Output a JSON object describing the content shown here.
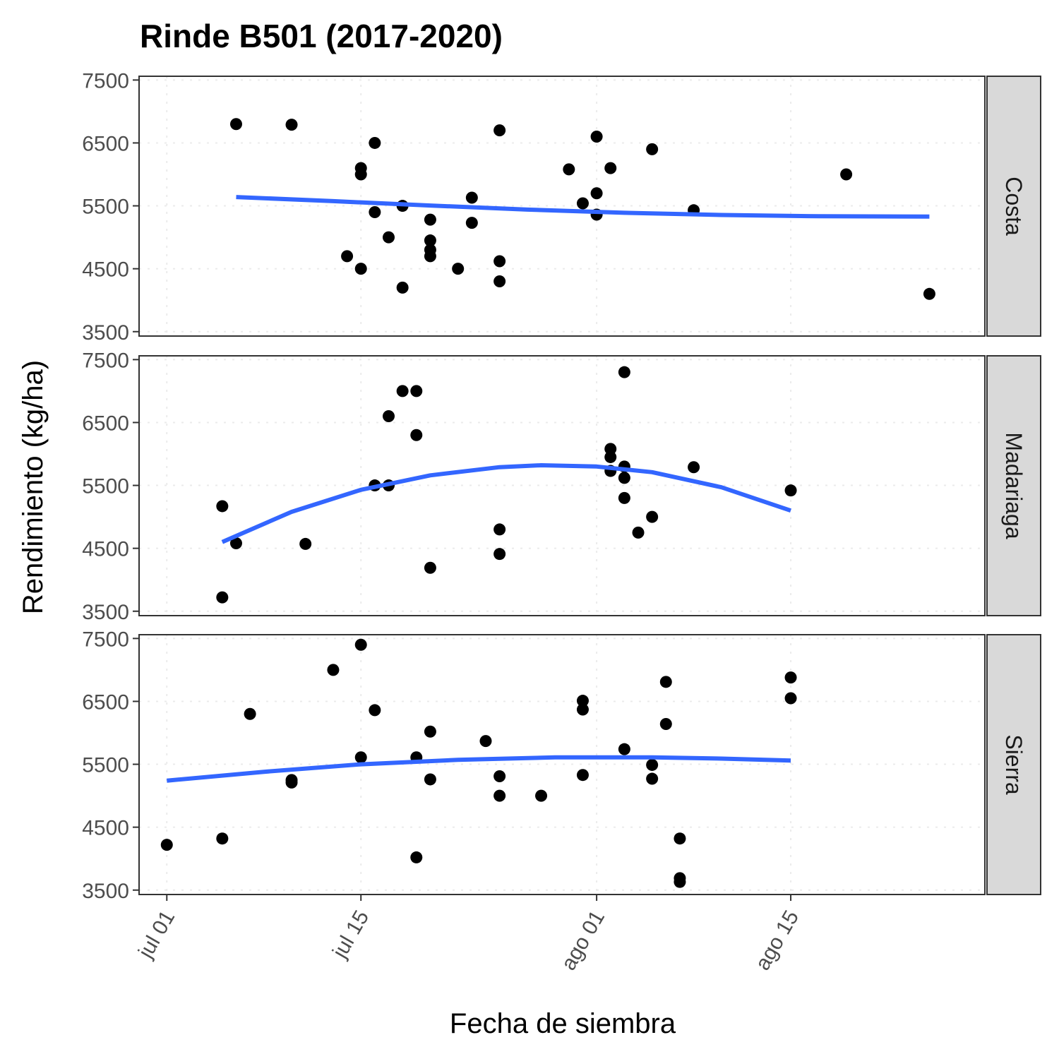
{
  "chart_data": {
    "type": "scatter",
    "title": "Rinde B501 (2017-2020)",
    "xlabel": "Fecha de siembra",
    "ylabel": "Rendimiento (kg/ha)",
    "x_unit": "day of year (jul 01 = 1)",
    "xlim": [
      "2018-06-28",
      "2018-08-28"
    ],
    "ylim": [
      3500,
      7500
    ],
    "x_ticks": [
      {
        "date": "2018-07-01",
        "label": "jul 01"
      },
      {
        "date": "2018-07-15",
        "label": "jul 15"
      },
      {
        "date": "2018-08-01",
        "label": "ago 01"
      },
      {
        "date": "2018-08-15",
        "label": "ago 15"
      }
    ],
    "y_ticks": [
      3500,
      4500,
      5500,
      6500,
      7500
    ],
    "grid": true,
    "colors": {
      "points": "#000000",
      "smooth": "#3366ff",
      "strip": "#d9d9d9",
      "grid": "#ebebeb",
      "border": "#333333"
    },
    "panels": [
      {
        "name": "Costa",
        "points": [
          {
            "x": "2018-07-06",
            "y": 6800
          },
          {
            "x": "2018-07-10",
            "y": 6790
          },
          {
            "x": "2018-07-14",
            "y": 4700
          },
          {
            "x": "2018-07-15",
            "y": 6100
          },
          {
            "x": "2018-07-15",
            "y": 6000
          },
          {
            "x": "2018-07-15",
            "y": 4500
          },
          {
            "x": "2018-07-16",
            "y": 6500
          },
          {
            "x": "2018-07-16",
            "y": 5400
          },
          {
            "x": "2018-07-17",
            "y": 5000
          },
          {
            "x": "2018-07-18",
            "y": 5500
          },
          {
            "x": "2018-07-18",
            "y": 4200
          },
          {
            "x": "2018-07-20",
            "y": 5280
          },
          {
            "x": "2018-07-20",
            "y": 4950
          },
          {
            "x": "2018-07-20",
            "y": 4800
          },
          {
            "x": "2018-07-20",
            "y": 4700
          },
          {
            "x": "2018-07-22",
            "y": 4500
          },
          {
            "x": "2018-07-23",
            "y": 5630
          },
          {
            "x": "2018-07-23",
            "y": 5230
          },
          {
            "x": "2018-07-25",
            "y": 6700
          },
          {
            "x": "2018-07-25",
            "y": 4620
          },
          {
            "x": "2018-07-25",
            "y": 4300
          },
          {
            "x": "2018-07-30",
            "y": 6080
          },
          {
            "x": "2018-07-31",
            "y": 5540
          },
          {
            "x": "2018-08-01",
            "y": 6600
          },
          {
            "x": "2018-08-01",
            "y": 5700
          },
          {
            "x": "2018-08-01",
            "y": 5360
          },
          {
            "x": "2018-08-02",
            "y": 6100
          },
          {
            "x": "2018-08-05",
            "y": 6400
          },
          {
            "x": "2018-08-08",
            "y": 5430
          },
          {
            "x": "2018-08-19",
            "y": 6000
          },
          {
            "x": "2018-08-25",
            "y": 4100
          }
        ],
        "smooth": [
          {
            "x": "2018-07-06",
            "y": 5640
          },
          {
            "x": "2018-07-13",
            "y": 5575
          },
          {
            "x": "2018-07-20",
            "y": 5505
          },
          {
            "x": "2018-07-27",
            "y": 5440
          },
          {
            "x": "2018-08-03",
            "y": 5390
          },
          {
            "x": "2018-08-10",
            "y": 5355
          },
          {
            "x": "2018-08-17",
            "y": 5335
          },
          {
            "x": "2018-08-25",
            "y": 5330
          }
        ]
      },
      {
        "name": "Madariaga",
        "points": [
          {
            "x": "2018-07-05",
            "y": 5170
          },
          {
            "x": "2018-07-05",
            "y": 3720
          },
          {
            "x": "2018-07-06",
            "y": 4580
          },
          {
            "x": "2018-07-11",
            "y": 4570
          },
          {
            "x": "2018-07-16",
            "y": 5500
          },
          {
            "x": "2018-07-17",
            "y": 6600
          },
          {
            "x": "2018-07-17",
            "y": 5500
          },
          {
            "x": "2018-07-18",
            "y": 7000
          },
          {
            "x": "2018-07-19",
            "y": 7000
          },
          {
            "x": "2018-07-19",
            "y": 6300
          },
          {
            "x": "2018-07-20",
            "y": 4190
          },
          {
            "x": "2018-07-25",
            "y": 4800
          },
          {
            "x": "2018-07-25",
            "y": 4410
          },
          {
            "x": "2018-08-02",
            "y": 6080
          },
          {
            "x": "2018-08-02",
            "y": 5950
          },
          {
            "x": "2018-08-02",
            "y": 5730
          },
          {
            "x": "2018-08-03",
            "y": 7300
          },
          {
            "x": "2018-08-03",
            "y": 5800
          },
          {
            "x": "2018-08-03",
            "y": 5620
          },
          {
            "x": "2018-08-03",
            "y": 5300
          },
          {
            "x": "2018-08-04",
            "y": 4750
          },
          {
            "x": "2018-08-05",
            "y": 5000
          },
          {
            "x": "2018-08-08",
            "y": 5790
          },
          {
            "x": "2018-08-15",
            "y": 5420
          }
        ],
        "smooth": [
          {
            "x": "2018-07-05",
            "y": 4600
          },
          {
            "x": "2018-07-10",
            "y": 5080
          },
          {
            "x": "2018-07-15",
            "y": 5430
          },
          {
            "x": "2018-07-20",
            "y": 5660
          },
          {
            "x": "2018-07-25",
            "y": 5790
          },
          {
            "x": "2018-07-28",
            "y": 5820
          },
          {
            "x": "2018-08-01",
            "y": 5800
          },
          {
            "x": "2018-08-05",
            "y": 5710
          },
          {
            "x": "2018-08-10",
            "y": 5470
          },
          {
            "x": "2018-08-15",
            "y": 5100
          }
        ]
      },
      {
        "name": "Sierra",
        "points": [
          {
            "x": "2018-07-01",
            "y": 4220
          },
          {
            "x": "2018-07-05",
            "y": 4320
          },
          {
            "x": "2018-07-07",
            "y": 6300
          },
          {
            "x": "2018-07-10",
            "y": 5250
          },
          {
            "x": "2018-07-10",
            "y": 5210
          },
          {
            "x": "2018-07-13",
            "y": 7000
          },
          {
            "x": "2018-07-15",
            "y": 7400
          },
          {
            "x": "2018-07-15",
            "y": 5610
          },
          {
            "x": "2018-07-16",
            "y": 6360
          },
          {
            "x": "2018-07-19",
            "y": 5610
          },
          {
            "x": "2018-07-19",
            "y": 4020
          },
          {
            "x": "2018-07-20",
            "y": 6020
          },
          {
            "x": "2018-07-20",
            "y": 5260
          },
          {
            "x": "2018-07-24",
            "y": 5870
          },
          {
            "x": "2018-07-25",
            "y": 5310
          },
          {
            "x": "2018-07-25",
            "y": 5000
          },
          {
            "x": "2018-07-28",
            "y": 5000
          },
          {
            "x": "2018-07-31",
            "y": 6510
          },
          {
            "x": "2018-07-31",
            "y": 6370
          },
          {
            "x": "2018-07-31",
            "y": 5330
          },
          {
            "x": "2018-08-03",
            "y": 5740
          },
          {
            "x": "2018-08-05",
            "y": 5490
          },
          {
            "x": "2018-08-05",
            "y": 5270
          },
          {
            "x": "2018-08-06",
            "y": 6810
          },
          {
            "x": "2018-08-06",
            "y": 6140
          },
          {
            "x": "2018-08-07",
            "y": 4320
          },
          {
            "x": "2018-08-07",
            "y": 3690
          },
          {
            "x": "2018-08-07",
            "y": 3630
          },
          {
            "x": "2018-08-15",
            "y": 6880
          },
          {
            "x": "2018-08-15",
            "y": 6550
          }
        ],
        "smooth": [
          {
            "x": "2018-07-01",
            "y": 5240
          },
          {
            "x": "2018-07-08",
            "y": 5380
          },
          {
            "x": "2018-07-15",
            "y": 5500
          },
          {
            "x": "2018-07-22",
            "y": 5570
          },
          {
            "x": "2018-07-29",
            "y": 5610
          },
          {
            "x": "2018-08-05",
            "y": 5610
          },
          {
            "x": "2018-08-10",
            "y": 5590
          },
          {
            "x": "2018-08-15",
            "y": 5560
          }
        ]
      }
    ]
  }
}
